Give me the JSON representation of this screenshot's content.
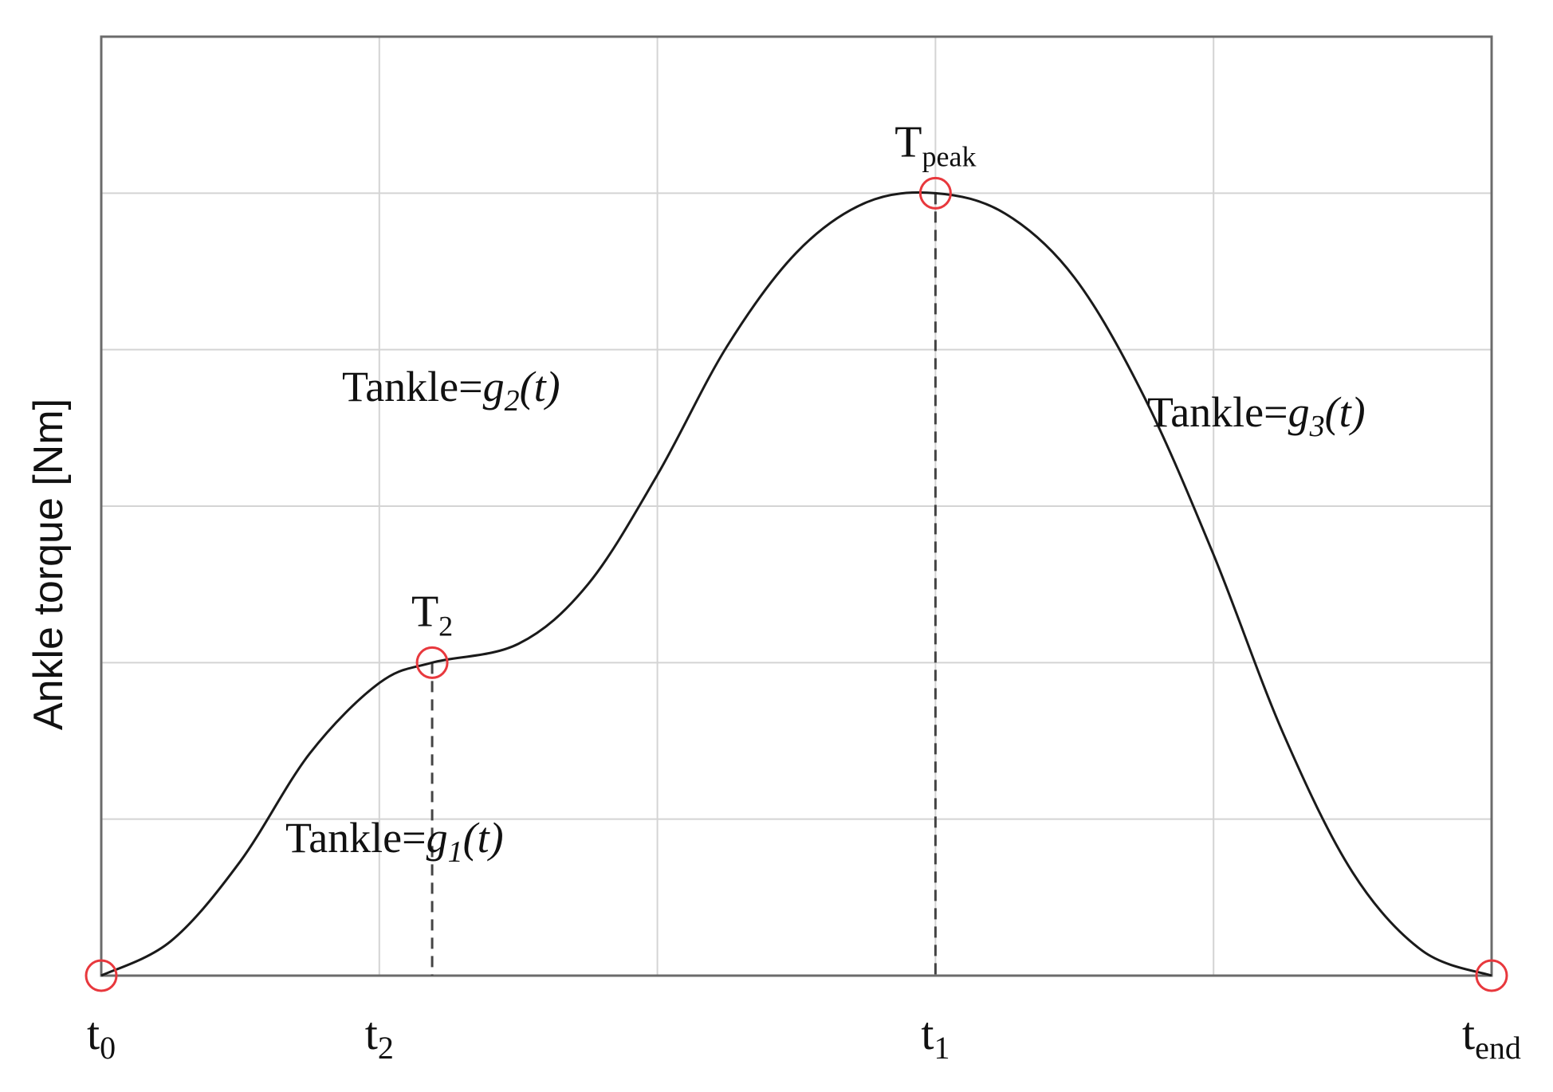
{
  "chart_data": {
    "type": "line",
    "ylabel": "Ankle torque [Nm]",
    "xlim": [
      0,
      5
    ],
    "ylim": [
      0,
      6
    ],
    "xticks": [
      {
        "value": 0,
        "label": "t",
        "subscript": "0"
      },
      {
        "value": 1,
        "label": "t",
        "subscript": "2"
      },
      {
        "value": 2,
        "label": null
      },
      {
        "value": 3,
        "label": "t",
        "subscript": "1"
      },
      {
        "value": 4,
        "label": null
      },
      {
        "value": 5,
        "label": "t",
        "subscript": "end"
      }
    ],
    "yticks": [
      {
        "value": 0,
        "label": null
      },
      {
        "value": 1,
        "label": null
      },
      {
        "value": 2,
        "label": null
      },
      {
        "value": 3,
        "label": null
      },
      {
        "value": 4,
        "label": null
      },
      {
        "value": 5,
        "label": null
      },
      {
        "value": 6,
        "label": null
      }
    ],
    "grid": true,
    "series": [
      {
        "color": "#1a1a1a",
        "x": [
          0,
          0.25,
          0.5,
          0.75,
          1.0,
          1.19,
          1.5,
          1.75,
          2.0,
          2.25,
          2.5,
          2.75,
          3.0,
          3.25,
          3.5,
          3.75,
          4.0,
          4.25,
          4.5,
          4.75,
          5.0
        ],
        "values": [
          0,
          0.22,
          0.73,
          1.42,
          1.87,
          2.0,
          2.12,
          2.5,
          3.2,
          4.02,
          4.62,
          4.94,
          5.0,
          4.87,
          4.46,
          3.7,
          2.69,
          1.55,
          0.66,
          0.16,
          0
        ]
      }
    ],
    "points": [
      {
        "x": 0,
        "y": 0
      },
      {
        "x": 1.19,
        "y": 2.0,
        "label": "T",
        "subscript": "2"
      },
      {
        "x": 3.0,
        "y": 5.0,
        "label": "T",
        "subscript": "peak"
      },
      {
        "x": 5.0,
        "y": 0
      }
    ],
    "point_color": "#e8383d",
    "annotations": [
      {
        "text": "Tankle=",
        "func": "g",
        "subscript": "2",
        "arg": "(t)"
      },
      {
        "text": "Tankle=",
        "func": "g",
        "subscript": "1",
        "arg": "(t)"
      },
      {
        "text": "Tankle=",
        "func": "g",
        "subscript": "3",
        "arg": "(t)"
      }
    ]
  }
}
